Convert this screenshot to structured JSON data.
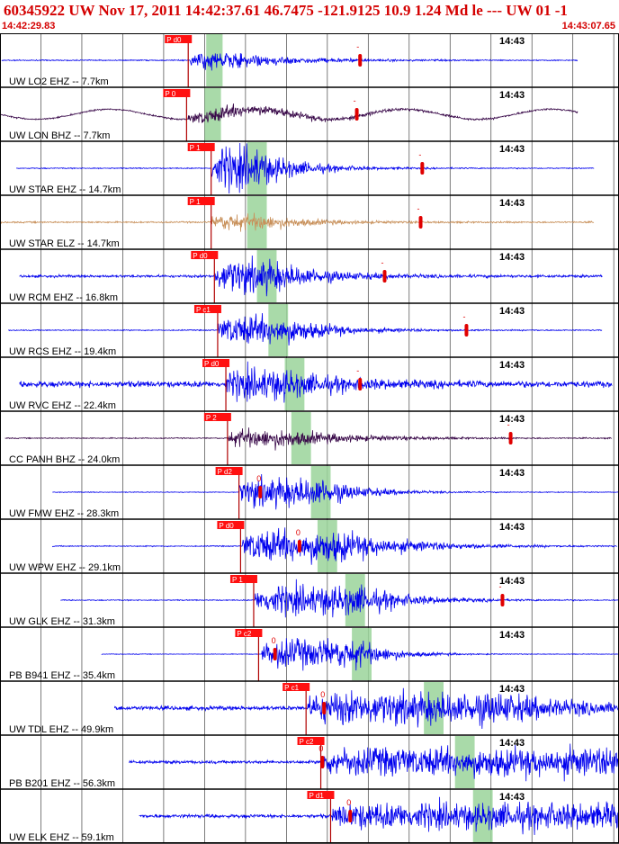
{
  "header": {
    "title": "60345922 UW Nov 17, 2011 14:42:37.61    46.7475 -121.9125 10.9 1.24 Md le --- UW 01   -1",
    "start_time": "14:42:29.83",
    "end_time": "14:43:07.65"
  },
  "chart_data": {
    "type": "line",
    "title": "60345922 UW Nov 17, 2011 14:42:37.61    46.7475 -121.9125 10.9 1.24 Md le --- UW 01   -1",
    "xlim": [
      "14:42:29.83",
      "14:43:07.65"
    ],
    "grid": true,
    "colors": {
      "blue": "#0000ee",
      "purple": "#3a0a4a",
      "brown": "#c8905a",
      "red": "#ff0000",
      "green": "#9ad49a"
    },
    "traces": [
      {
        "label": "UW LO2 EHZ -- 7.7km",
        "time_label": "14:43",
        "pick": "P d0",
        "pick_t": 11.5,
        "s_t": [
          12.6,
          13.6
        ],
        "coda_t": 22.0,
        "coda_label": "-",
        "color": "blue",
        "amp": 0.35,
        "noise": 0.02,
        "onset_t": 11.6,
        "hold_t": 2.0,
        "decay_s": 4.0,
        "start_t": 0.1,
        "end_t": 35.3
      },
      {
        "label": "UW LON BHZ -- 7.7km",
        "time_label": "14:43",
        "pick": "P 0",
        "pick_t": 11.4,
        "s_t": [
          12.5,
          13.5
        ],
        "coda_t": 21.8,
        "coda_label": "-",
        "color": "purple",
        "amp": 0.25,
        "noise": 0.03,
        "onset_t": 11.5,
        "hold_t": 2.5,
        "decay_s": 5.0,
        "start_t": 0.0,
        "end_t": 35.3,
        "swell": 0.2
      },
      {
        "label": "UW STAR EHZ -- 14.7km",
        "time_label": "14:43",
        "pick": "P 1",
        "pick_t": 12.9,
        "s_t": [
          15.1,
          16.3
        ],
        "coda_t": 25.8,
        "coda_label": "-",
        "color": "blue",
        "amp": 0.85,
        "noise": 0.02,
        "onset_t": 12.9,
        "hold_t": 2.5,
        "decay_s": 2.5,
        "start_t": 1.0,
        "end_t": 36.3
      },
      {
        "label": "UW STAR ELZ -- 14.7km",
        "time_label": "14:43",
        "pick": "P 1",
        "pick_t": 12.9,
        "s_t": [
          15.1,
          16.3
        ],
        "coda_t": 25.7,
        "coda_label": "-",
        "color": "brown",
        "amp": 0.3,
        "noise": 0.03,
        "onset_t": 12.9,
        "hold_t": 3.0,
        "decay_s": 3.0,
        "start_t": 0.0,
        "end_t": 36.3
      },
      {
        "label": "UW RCM EHZ -- 16.8km",
        "time_label": "14:43",
        "pick": "P d0",
        "pick_t": 13.1,
        "s_t": [
          15.7,
          16.9
        ],
        "coda_t": 23.5,
        "coda_label": "-",
        "color": "blue",
        "amp": 0.6,
        "noise": 0.05,
        "onset_t": 13.1,
        "hold_t": 3.5,
        "decay_s": 3.0,
        "start_t": 1.2,
        "end_t": 36.8
      },
      {
        "label": "UW RCS EHZ -- 19.4km",
        "time_label": "14:43",
        "pick": "P c1",
        "pick_t": 13.3,
        "s_t": [
          16.4,
          17.6
        ],
        "coda_t": 28.5,
        "coda_label": "-",
        "color": "blue",
        "amp": 0.55,
        "noise": 0.02,
        "onset_t": 13.3,
        "hold_t": 4.0,
        "decay_s": 3.0,
        "start_t": 0.5,
        "end_t": 36.8
      },
      {
        "label": "UW RVC EHZ -- 22.4km",
        "time_label": "14:43",
        "pick": "P d0",
        "pick_t": 13.8,
        "s_t": [
          17.4,
          18.6
        ],
        "coda_t": 22.0,
        "coda_label": "-",
        "color": "blue",
        "amp": 0.5,
        "noise": 0.12,
        "onset_t": 13.8,
        "hold_t": 3.5,
        "decay_s": 3.5,
        "start_t": 1.2,
        "end_t": 37.4
      },
      {
        "label": "CC PANH BHZ -- 24.0km",
        "time_label": "14:43",
        "pick": "P 2",
        "pick_t": 13.9,
        "s_t": [
          17.8,
          19.0
        ],
        "coda_t": 31.2,
        "coda_label": "-",
        "color": "purple",
        "amp": 0.35,
        "noise": 0.02,
        "onset_t": 13.9,
        "hold_t": 3.5,
        "decay_s": 4.0,
        "start_t": 0.3,
        "end_t": 37.4
      },
      {
        "label": "UW FMW EHZ -- 28.3km",
        "time_label": "14:43",
        "pick": "P d2",
        "pick_t": 14.6,
        "s_t": [
          19.0,
          20.2
        ],
        "coda_t": 15.9,
        "coda_label": "0",
        "color": "blue",
        "amp": 0.55,
        "noise": 0.015,
        "onset_t": 14.6,
        "hold_t": 5.0,
        "decay_s": 2.5,
        "start_t": 3.2,
        "end_t": 38.7
      },
      {
        "label": "UW WPW EHZ -- 29.1km",
        "time_label": "14:43",
        "pick": "P d0",
        "pick_t": 14.7,
        "s_t": [
          19.4,
          20.6
        ],
        "coda_t": 18.3,
        "coda_label": "0",
        "color": "blue",
        "amp": 0.6,
        "noise": 0.02,
        "onset_t": 14.8,
        "hold_t": 6.0,
        "decay_s": 4.0,
        "start_t": 3.2,
        "end_t": 37.7
      },
      {
        "label": "UW GLK EHZ -- 31.3km",
        "time_label": "14:43",
        "pick": "P 1",
        "pick_t": 15.5,
        "s_t": [
          21.1,
          22.3
        ],
        "coda_t": 30.7,
        "coda_label": "-",
        "color": "blue",
        "amp": 0.55,
        "noise": 0.02,
        "onset_t": 15.6,
        "hold_t": 6.5,
        "decay_s": 3.0,
        "start_t": 3.7,
        "end_t": 38.9
      },
      {
        "label": "PB B941 EHZ -- 35.4km",
        "time_label": "14:43",
        "pick": "P c2",
        "pick_t": 15.8,
        "s_t": [
          21.5,
          22.7
        ],
        "coda_t": 16.8,
        "coda_label": "0",
        "color": "blue",
        "amp": 0.55,
        "noise": 0.012,
        "onset_t": 16.0,
        "hold_t": 6.0,
        "decay_s": 2.0,
        "start_t": 6.2,
        "end_t": 39.9
      },
      {
        "label": "UW TDL EHZ -- 49.9km",
        "time_label": "14:43",
        "pick": "P c1",
        "pick_t": 18.7,
        "s_t": [
          25.9,
          27.1
        ],
        "coda_t": 19.8,
        "coda_label": "0",
        "color": "blue",
        "amp": 0.55,
        "noise": 0.08,
        "onset_t": 18.8,
        "hold_t": 12.0,
        "decay_s": 5.0,
        "start_t": 7.0,
        "end_t": 42.1
      },
      {
        "label": "PB B201 EHZ -- 56.3km",
        "time_label": "14:43",
        "pick": "P c2",
        "pick_t": 19.6,
        "s_t": [
          27.8,
          29.0
        ],
        "coda_t": 19.7,
        "coda_label": "0",
        "color": "blue",
        "amp": 0.5,
        "noise": 0.06,
        "onset_t": 19.7,
        "hold_t": 18.0,
        "decay_s": 8.0,
        "start_t": 7.9,
        "end_t": 43.7
      },
      {
        "label": "UW ELK EHZ -- 59.1km",
        "time_label": "14:43",
        "pick": "P d1",
        "pick_t": 20.2,
        "s_t": [
          28.9,
          30.1
        ],
        "coda_t": 21.4,
        "coda_label": "0",
        "color": "blue",
        "amp": 0.45,
        "noise": 0.07,
        "onset_t": 20.3,
        "hold_t": 17.0,
        "decay_s": 8.0,
        "start_t": 8.5,
        "end_t": 43.7
      }
    ]
  }
}
